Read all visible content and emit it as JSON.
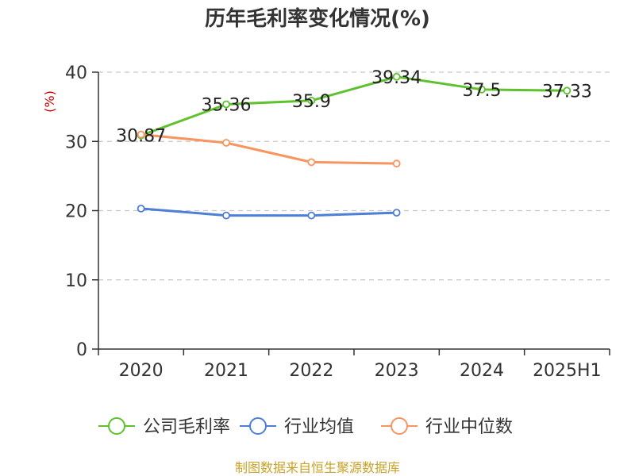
{
  "chart_data": {
    "type": "line",
    "title": "历年毛利率变化情况(%)",
    "ylabel": "(%)",
    "categories": [
      "2020",
      "2021",
      "2022",
      "2023",
      "2024",
      "2025H1"
    ],
    "ylim": [
      0,
      40
    ],
    "yticks": [
      0,
      10,
      20,
      30,
      40
    ],
    "grid": true,
    "legend_position": "bottom",
    "series": [
      {
        "name": "公司毛利率",
        "color": "#5ec12e",
        "values": [
          30.87,
          35.36,
          35.9,
          39.34,
          37.5,
          37.33
        ],
        "labels": [
          "30.87",
          "35.36",
          "35.9",
          "39.34",
          "37.5",
          "37.33"
        ]
      },
      {
        "name": "行业均值",
        "color": "#4d7fd6",
        "values": [
          20.3,
          19.3,
          19.3,
          19.7,
          null,
          null
        ]
      },
      {
        "name": "行业中位数",
        "color": "#f7945f",
        "values": [
          31.0,
          29.8,
          27.0,
          26.8,
          null,
          null
        ]
      }
    ]
  },
  "source": "制图数据来自恒生聚源数据库"
}
